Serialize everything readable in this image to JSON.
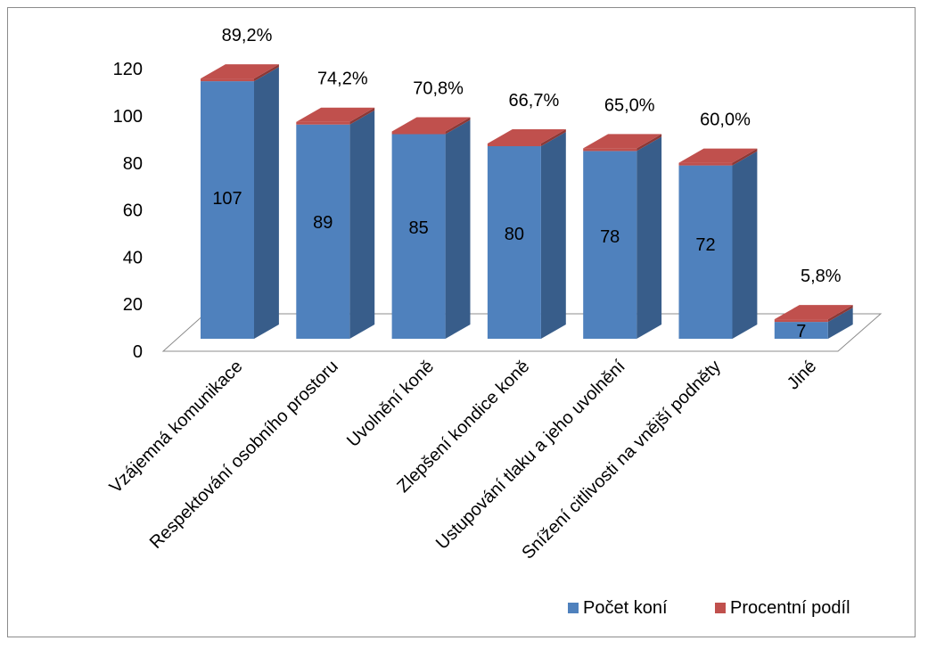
{
  "chart_data": {
    "type": "bar",
    "categories": [
      "Vzájemná komunikace",
      "Respektování osobního prostoru",
      "Uvolnění koně",
      "Zlepšení kondice koně",
      "Ustupování tlaku a jeho uvolnění",
      "Snížení citlivosti na vnější podněty",
      "Jiné"
    ],
    "series": [
      {
        "name": "Počet koní",
        "values": [
          107,
          89,
          85,
          80,
          78,
          72,
          7
        ],
        "labels": [
          "107",
          "89",
          "85",
          "80",
          "78",
          "72",
          "7"
        ],
        "color": "#4f81bd",
        "side_color": "#385d8a"
      },
      {
        "name": "Procentní podíl",
        "values": [
          89.2,
          74.2,
          70.8,
          66.7,
          65.0,
          60.0,
          5.8
        ],
        "labels": [
          "89,2%",
          "74,2%",
          "70,8%",
          "66,7%",
          "65,0%",
          "60,0%",
          "5,8%"
        ],
        "color": "#c0504d",
        "side_color": "#8c3836"
      }
    ],
    "y_ticks": [
      "0",
      "20",
      "40",
      "60",
      "80",
      "100",
      "120"
    ],
    "ylim": [
      0,
      120
    ],
    "legend_position": "bottom-right",
    "style": "3d-stacked-column"
  }
}
